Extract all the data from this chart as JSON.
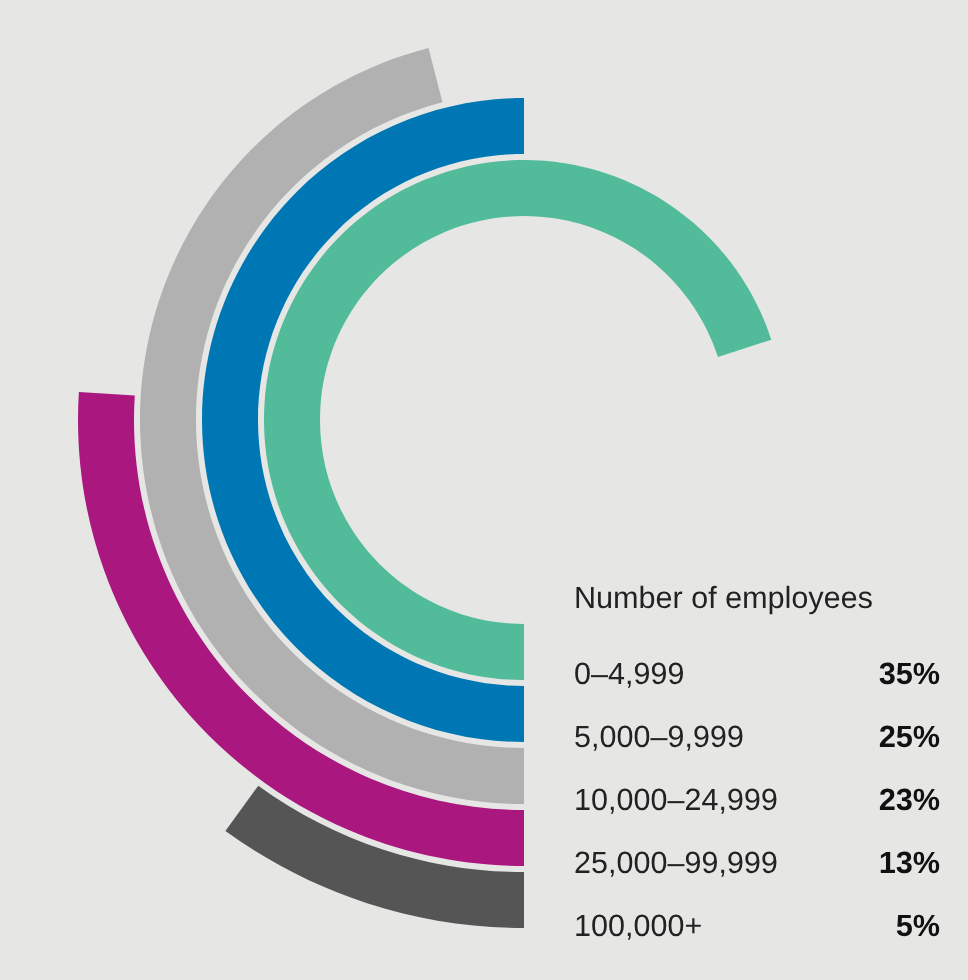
{
  "chart_data": {
    "type": "other",
    "legend_title": "Number of employees",
    "categories": [
      "0–4,999",
      "5,000–9,999",
      "10,000–24,999",
      "25,000–99,999",
      "100,000+"
    ],
    "values": [
      35,
      25,
      23,
      13,
      5
    ],
    "value_labels": [
      "35%",
      "25%",
      "23%",
      "13%",
      "5%"
    ],
    "colors": [
      "#52bb9a",
      "#0077b5",
      "#b1b1b1",
      "#a9177f",
      "#555555"
    ]
  }
}
